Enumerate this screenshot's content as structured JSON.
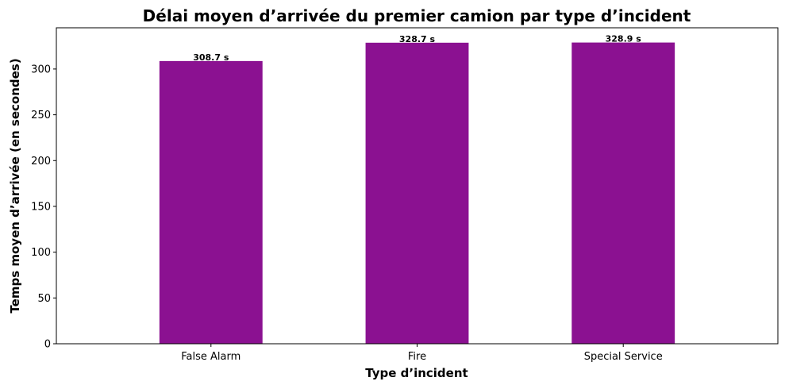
{
  "chart_data": {
    "type": "bar",
    "title": "Délai moyen d’arrivée du premier camion par type d’incident",
    "xlabel": "Type d’incident",
    "ylabel": "Temps moyen d’arrivée (en secondes)",
    "categories": [
      "False Alarm",
      "Fire",
      "Special Service"
    ],
    "values": [
      308.7,
      328.7,
      328.9
    ],
    "data_labels": [
      "308.7 s",
      "328.7 s",
      "328.9 s"
    ],
    "ylim": [
      0,
      345
    ],
    "yticks": [
      0,
      50,
      100,
      150,
      200,
      250,
      300
    ],
    "bar_color": "#8b1191",
    "grid": false,
    "legend": "none"
  }
}
